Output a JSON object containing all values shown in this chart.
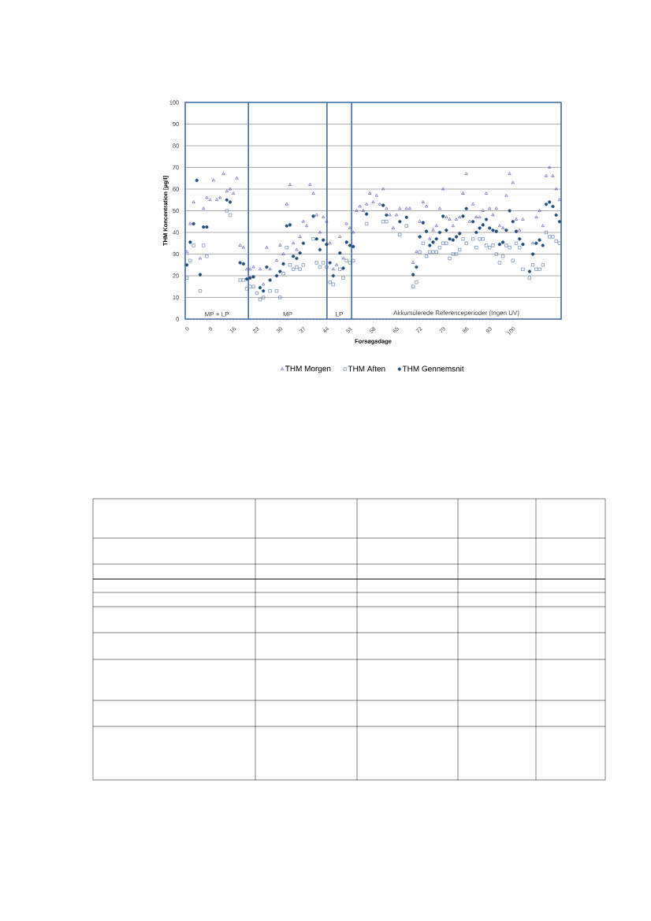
{
  "chart_data": {
    "type": "scatter",
    "xlabel": "Forsøgsdage",
    "ylabel": "THM Koncentration [µg/l]",
    "categories": [
      "0",
      null,
      null,
      null,
      null,
      null,
      null,
      "9",
      null,
      null,
      null,
      null,
      null,
      null,
      "16",
      null,
      null,
      null,
      null,
      null,
      null,
      "23",
      null,
      null,
      null,
      null,
      null,
      null,
      "30",
      null,
      null,
      null,
      null,
      null,
      null,
      "37",
      null,
      null,
      null,
      null,
      null,
      null,
      "44",
      null,
      null,
      null,
      null,
      null,
      null,
      "51",
      null,
      null,
      null,
      null,
      null,
      null,
      "58",
      null,
      null,
      null,
      null,
      null,
      null,
      "65",
      null,
      null,
      null,
      null,
      null,
      null,
      "72",
      null,
      null,
      null,
      null,
      null,
      null,
      "79",
      null,
      null,
      null,
      null,
      null,
      null,
      "86",
      null,
      null,
      null,
      null,
      null,
      null,
      "93",
      null,
      null,
      null,
      null,
      null,
      null,
      "100",
      null,
      null,
      null,
      null,
      null,
      null,
      null,
      null,
      null,
      null,
      null,
      null,
      null,
      null
    ],
    "ylim": [
      0,
      100
    ],
    "yticks": [
      0,
      10,
      20,
      30,
      40,
      50,
      60,
      70,
      80,
      90,
      100
    ],
    "grid": "y",
    "legend": "bottom",
    "annotations": [
      "MP + LP",
      "MP",
      "LP",
      "Akkumulerede Referenceperioder (Ingen UV)"
    ],
    "series": [
      {
        "name": "THM Morgen",
        "color": "#4040a8",
        "marker": "triangle",
        "values": [
          31,
          44,
          54,
          null,
          28,
          51,
          56,
          55,
          64,
          55,
          56,
          67,
          59,
          60,
          58,
          65,
          34,
          33,
          23,
          23,
          24,
          null,
          23,
          16,
          33,
          23,
          null,
          27,
          34,
          30,
          53,
          62,
          35,
          32,
          38,
          45,
          43,
          62,
          58,
          48,
          40,
          47,
          45,
          35,
          23,
          25,
          38,
          28,
          44,
          42,
          40,
          50,
          52,
          50,
          53,
          58,
          54,
          57,
          53,
          60,
          51,
          48,
          42,
          48,
          51,
          null,
          51,
          51,
          26,
          31,
          45,
          54,
          52,
          37,
          41,
          43,
          51,
          60,
          47,
          46,
          43,
          46,
          47,
          58,
          67,
          45,
          53,
          47,
          47,
          50,
          58,
          51,
          48,
          51,
          43,
          42,
          57,
          67,
          63,
          46,
          41,
          46,
          null,
          null,
          35,
          47,
          50,
          43,
          66,
          70,
          66,
          60,
          55
        ]
      },
      {
        "name": "THM Aften",
        "color": "#4a72a8",
        "marker": "square",
        "values": [
          19,
          27,
          34,
          null,
          13,
          34,
          29,
          null,
          null,
          null,
          null,
          null,
          50,
          48,
          null,
          null,
          18,
          18,
          14,
          15,
          15,
          12,
          9,
          10,
          null,
          13,
          null,
          13,
          10,
          21,
          33,
          25,
          23,
          24,
          23,
          25,
          null,
          null,
          37,
          26,
          24,
          26,
          24,
          17,
          16,
          null,
          23,
          19,
          27,
          26,
          27,
          null,
          null,
          null,
          44,
          null,
          null,
          null,
          null,
          45,
          45,
          null,
          null,
          null,
          39,
          null,
          43,
          null,
          15,
          17,
          31,
          35,
          29,
          31,
          31,
          31,
          33,
          35,
          35,
          28,
          30,
          30,
          32,
          37,
          35,
          null,
          37,
          33,
          37,
          37,
          34,
          33,
          34,
          30,
          26,
          29,
          34,
          33,
          27,
          35,
          33,
          23,
          null,
          19,
          25,
          23,
          23,
          25,
          40,
          38,
          38,
          36,
          35
        ]
      },
      {
        "name": "THM Gennemsnit",
        "color": "#1f4e79",
        "marker": "circle",
        "values": [
          25,
          35.5,
          44,
          64,
          20.5,
          42.5,
          42.5,
          null,
          null,
          null,
          null,
          null,
          55,
          54,
          null,
          null,
          26,
          25.5,
          18.5,
          19,
          19.5,
          null,
          14.5,
          13,
          24,
          18,
          null,
          20,
          22,
          25.5,
          43,
          43.5,
          29,
          28,
          30.5,
          35,
          null,
          null,
          47.5,
          37,
          32,
          36.5,
          34.5,
          26,
          20,
          null,
          30.5,
          23.5,
          35.5,
          34,
          33.5,
          null,
          null,
          null,
          48.5,
          null,
          null,
          null,
          null,
          52.5,
          48,
          null,
          null,
          null,
          45,
          null,
          47,
          null,
          20.5,
          24,
          38,
          44.5,
          40.5,
          34,
          35.5,
          37,
          40,
          47.5,
          41,
          37,
          36.5,
          38,
          39.5,
          47.5,
          51,
          null,
          45,
          40,
          42,
          43.5,
          46,
          42,
          41,
          40.5,
          34.5,
          35.5,
          41,
          50,
          45,
          40.5,
          37,
          34.5,
          null,
          22,
          30,
          35,
          36.5,
          34,
          53,
          54,
          52,
          48,
          45
        ]
      }
    ]
  }
}
